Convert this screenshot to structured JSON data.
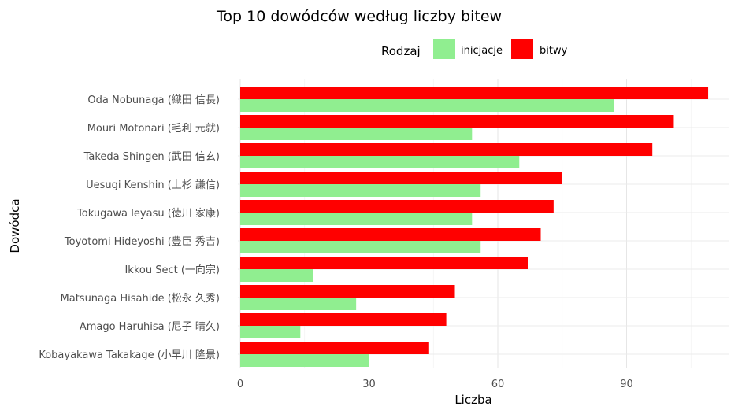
{
  "chart_data": {
    "type": "bar",
    "orientation": "horizontal",
    "title": "Top 10 dowódców według liczby bitew",
    "xlabel": "Liczba",
    "ylabel": "Dowódca",
    "legend": {
      "title": "Rodzaj",
      "placement": "top"
    },
    "categories": [
      "Oda Nobunaga (織田 信長)",
      "Mouri Motonari (毛利 元就)",
      "Takeda Shingen (武田 信玄)",
      "Uesugi Kenshin (上杉 謙信)",
      "Tokugawa Ieyasu (徳川 家康)",
      "Toyotomi Hideyoshi (豊臣 秀吉)",
      "Ikkou Sect (一向宗)",
      "Matsunaga Hisahide (松永 久秀)",
      "Amago Haruhisa (尼子 晴久)",
      "Kobayakawa Takakage (小早川 隆景)"
    ],
    "series": [
      {
        "name": "inicjacje",
        "color": "#90EE90",
        "values": [
          87,
          54,
          65,
          56,
          54,
          56,
          17,
          27,
          14,
          30
        ]
      },
      {
        "name": "bitwy",
        "color": "#FF0000",
        "values": [
          109,
          101,
          96,
          75,
          73,
          70,
          67,
          50,
          48,
          44
        ]
      }
    ],
    "xticks": [
      0,
      30,
      60,
      90
    ],
    "xlim": [
      0,
      109
    ],
    "grid": true
  }
}
